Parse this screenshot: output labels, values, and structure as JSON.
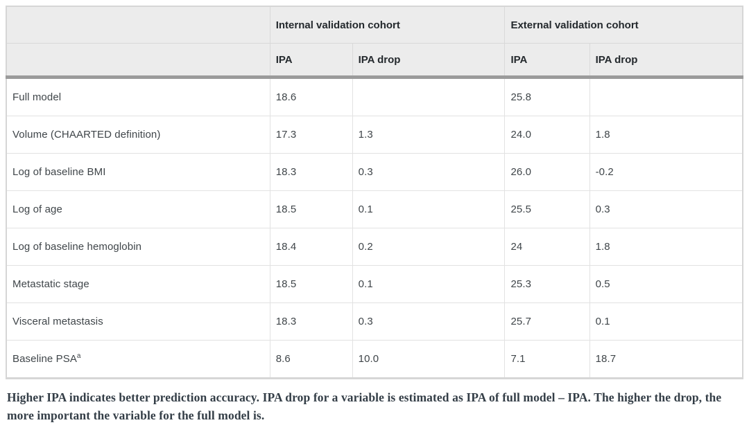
{
  "header": {
    "groups": [
      {
        "label": "Internal validation cohort"
      },
      {
        "label": "External validation cohort"
      }
    ],
    "sub": {
      "ipa": "IPA",
      "drop": "IPA drop"
    }
  },
  "rows": [
    {
      "label": "Full model",
      "cells": [
        "18.6",
        "",
        "25.8",
        ""
      ]
    },
    {
      "label": "Volume (CHAARTED definition)",
      "cells": [
        "17.3",
        "1.3",
        "24.0",
        "1.8"
      ]
    },
    {
      "label": "Log of baseline BMI",
      "cells": [
        "18.3",
        "0.3",
        "26.0",
        "-0.2"
      ]
    },
    {
      "label": "Log of age",
      "cells": [
        "18.5",
        "0.1",
        "25.5",
        "0.3"
      ]
    },
    {
      "label": "Log of baseline hemoglobin",
      "cells": [
        "18.4",
        "0.2",
        "24",
        "1.8"
      ]
    },
    {
      "label": "Metastatic stage",
      "cells": [
        "18.5",
        "0.1",
        "25.3",
        "0.5"
      ]
    },
    {
      "label": "Visceral metastasis",
      "cells": [
        "18.3",
        "0.3",
        "25.7",
        "0.1"
      ]
    },
    {
      "label": "Baseline PSA",
      "label_sup": "a",
      "cells": [
        "8.6",
        "10.0",
        "7.1",
        "18.7"
      ]
    }
  ],
  "footnote": "Higher IPA indicates better prediction accuracy. IPA drop for a variable is estimated as IPA of full model – IPA. The higher the drop, the more important the variable for the full model is.",
  "colors": {
    "header_bg": "#ececec",
    "thick_rule": "#9b9b9b",
    "outer_border": "#d6d6d6",
    "cell_border": "#e2e2e2",
    "header_text": "#24292d",
    "body_text": "#3f4549",
    "footnote_text": "#343e47"
  }
}
